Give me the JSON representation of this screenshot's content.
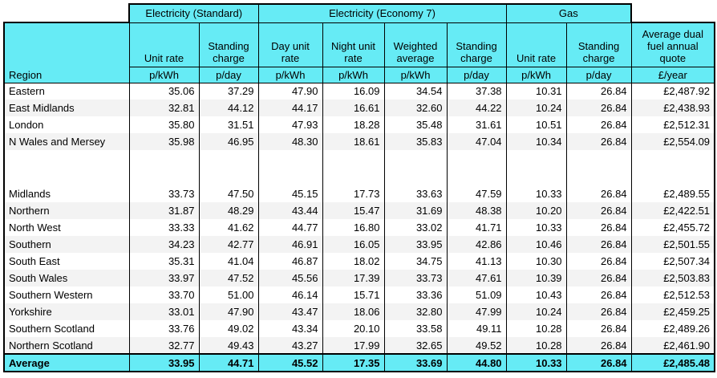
{
  "chart_data": {
    "type": "table",
    "region_header": "Region",
    "column_groups": [
      {
        "label": "Electricity (Standard)",
        "colspan": 2
      },
      {
        "label": "Electricity (Economy 7)",
        "colspan": 4
      },
      {
        "label": "Gas",
        "colspan": 2
      }
    ],
    "columns": [
      {
        "label": "Unit rate",
        "unit": "p/kWh"
      },
      {
        "label": "Standing charge",
        "unit": "p/day"
      },
      {
        "label": "Day unit rate",
        "unit": "p/kWh"
      },
      {
        "label": "Night unit rate",
        "unit": "p/kWh"
      },
      {
        "label": "Weighted average",
        "unit": "p/kWh"
      },
      {
        "label": "Standing charge",
        "unit": "p/day"
      },
      {
        "label": "Unit rate",
        "unit": "p/kWh"
      },
      {
        "label": "Standing charge",
        "unit": "p/day"
      },
      {
        "label": "Average dual fuel annual quote",
        "unit": "£/year"
      }
    ],
    "rows": [
      {
        "region": "Eastern",
        "shaded": false,
        "spacer": false,
        "values": [
          "35.06",
          "37.29",
          "47.90",
          "16.09",
          "34.54",
          "37.38",
          "10.31",
          "26.84",
          "£2,487.92"
        ]
      },
      {
        "region": "East Midlands",
        "shaded": true,
        "spacer": false,
        "values": [
          "32.81",
          "44.12",
          "44.17",
          "16.61",
          "32.60",
          "44.22",
          "10.24",
          "26.84",
          "£2,438.93"
        ]
      },
      {
        "region": "London",
        "shaded": false,
        "spacer": false,
        "values": [
          "35.80",
          "31.51",
          "47.93",
          "18.28",
          "35.48",
          "31.61",
          "10.51",
          "26.84",
          "£2,512.31"
        ]
      },
      {
        "region": "N Wales and Mersey",
        "shaded": true,
        "spacer": false,
        "values": [
          "35.98",
          "46.95",
          "48.30",
          "18.61",
          "35.83",
          "47.04",
          "10.34",
          "26.84",
          "£2,554.09"
        ]
      },
      {
        "region": "",
        "shaded": false,
        "spacer": true,
        "values": [
          "",
          "",
          "",
          "",
          "",
          "",
          "",
          "",
          ""
        ]
      },
      {
        "region": "Midlands",
        "shaded": false,
        "spacer": false,
        "values": [
          "33.73",
          "47.50",
          "45.15",
          "17.73",
          "33.63",
          "47.59",
          "10.33",
          "26.84",
          "£2,489.55"
        ]
      },
      {
        "region": "Northern",
        "shaded": true,
        "spacer": false,
        "values": [
          "31.87",
          "48.29",
          "43.44",
          "15.47",
          "31.69",
          "48.38",
          "10.20",
          "26.84",
          "£2,422.51"
        ]
      },
      {
        "region": "North West",
        "shaded": false,
        "spacer": false,
        "values": [
          "33.33",
          "41.62",
          "44.77",
          "16.80",
          "33.02",
          "41.71",
          "10.33",
          "26.84",
          "£2,455.72"
        ]
      },
      {
        "region": "Southern",
        "shaded": true,
        "spacer": false,
        "values": [
          "34.23",
          "42.77",
          "46.91",
          "16.05",
          "33.95",
          "42.86",
          "10.46",
          "26.84",
          "£2,501.55"
        ]
      },
      {
        "region": "South East",
        "shaded": false,
        "spacer": false,
        "values": [
          "35.31",
          "41.04",
          "46.87",
          "18.02",
          "34.75",
          "41.13",
          "10.30",
          "26.84",
          "£2,507.34"
        ]
      },
      {
        "region": "South Wales",
        "shaded": true,
        "spacer": false,
        "values": [
          "33.97",
          "47.52",
          "45.56",
          "17.39",
          "33.73",
          "47.61",
          "10.39",
          "26.84",
          "£2,503.83"
        ]
      },
      {
        "region": "Southern Western",
        "shaded": false,
        "spacer": false,
        "values": [
          "33.70",
          "51.00",
          "46.14",
          "15.71",
          "33.36",
          "51.09",
          "10.43",
          "26.84",
          "£2,512.53"
        ]
      },
      {
        "region": "Yorkshire",
        "shaded": true,
        "spacer": false,
        "values": [
          "33.01",
          "47.90",
          "43.47",
          "18.06",
          "32.80",
          "47.99",
          "10.24",
          "26.84",
          "£2,459.25"
        ]
      },
      {
        "region": "Southern Scotland",
        "shaded": false,
        "spacer": false,
        "values": [
          "33.76",
          "49.02",
          "43.34",
          "20.10",
          "33.58",
          "49.11",
          "10.28",
          "26.84",
          "£2,489.26"
        ]
      },
      {
        "region": "Northern Scotland",
        "shaded": true,
        "spacer": false,
        "values": [
          "32.77",
          "49.43",
          "43.27",
          "17.99",
          "32.65",
          "49.52",
          "10.28",
          "26.84",
          "£2,461.90"
        ]
      }
    ],
    "average_row": {
      "region": "Average",
      "values": [
        "33.95",
        "44.71",
        "45.52",
        "17.35",
        "33.69",
        "44.80",
        "10.33",
        "26.84",
        "£2,485.48"
      ]
    },
    "colors": {
      "header_bg": "#66EBF5",
      "stripe_bg": "#F3F3F3",
      "border": "#000000"
    }
  }
}
